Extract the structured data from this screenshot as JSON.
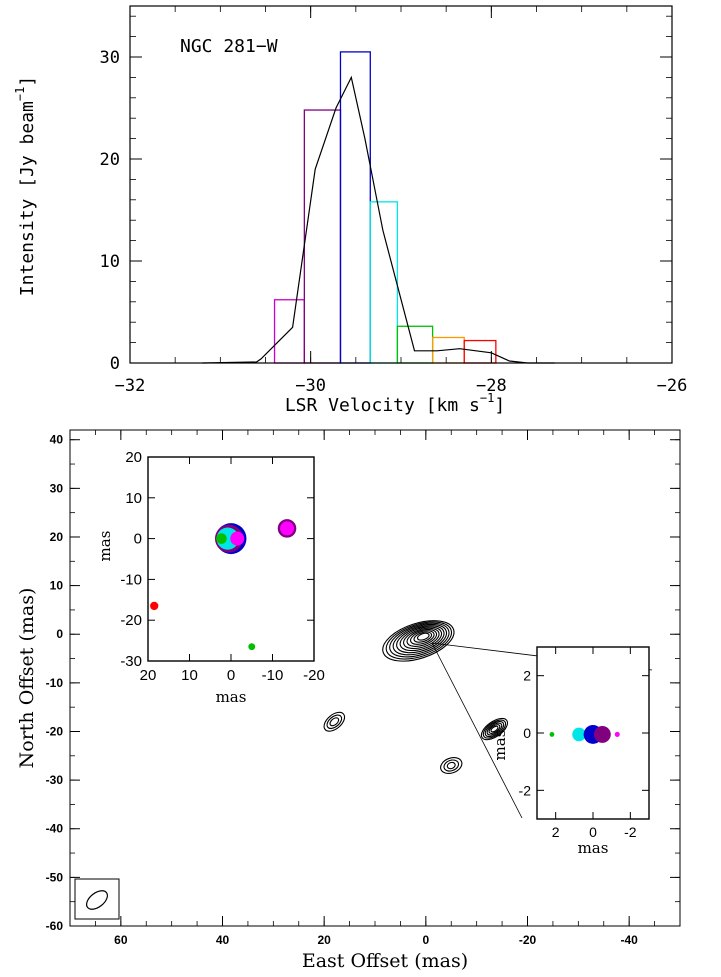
{
  "chart_data": [
    {
      "type": "bar",
      "subtype": "histogram-with-line",
      "annotation": "NGC 281−W",
      "xlabel": "LSR Velocity [km s⁻¹]",
      "xlabel_main": "LSR Velocity [km s",
      "xlabel_sup": "−1",
      "xlabel_close": "]",
      "ylabel": "Intensity [Jy beam⁻¹]",
      "ylabel_main": "Intensity [Jy beam",
      "ylabel_sup": "−1",
      "ylabel_close": "]",
      "xlim": [
        -32,
        -26
      ],
      "ylim": [
        0,
        35
      ],
      "xticks": [
        {
          "value": -32,
          "label": "−32"
        },
        {
          "value": -30,
          "label": "−30"
        },
        {
          "value": -28,
          "label": "−28"
        },
        {
          "value": -26,
          "label": "−26"
        }
      ],
      "yticks": [
        {
          "value": 0,
          "label": "0"
        },
        {
          "value": 10,
          "label": "10"
        },
        {
          "value": 20,
          "label": "20"
        },
        {
          "value": 30,
          "label": "30"
        }
      ],
      "bars": [
        {
          "x0": -30.4,
          "x1": -30.07,
          "value": 6.2,
          "color": "#cc00cc"
        },
        {
          "x0": -30.07,
          "x1": -29.67,
          "value": 24.8,
          "color": "#800080"
        },
        {
          "x0": -29.67,
          "x1": -29.34,
          "value": 30.5,
          "color": "#0000cc"
        },
        {
          "x0": -29.34,
          "x1": -29.04,
          "value": 15.8,
          "color": "#00e5e5"
        },
        {
          "x0": -29.04,
          "x1": -28.65,
          "value": 3.6,
          "color": "#00c000"
        },
        {
          "x0": -28.65,
          "x1": -28.3,
          "value": 2.5,
          "color": "#ff9900"
        },
        {
          "x0": -28.3,
          "x1": -27.95,
          "value": 2.2,
          "color": "#ff0000"
        }
      ],
      "spectrum": {
        "name": "spectrum",
        "x": [
          -31.2,
          -30.6,
          -30.55,
          -30.2,
          -29.95,
          -29.72,
          -29.55,
          -29.4,
          -29.2,
          -28.85,
          -28.6,
          -28.35,
          -28.0,
          -27.8,
          -27.6,
          -27.3
        ],
        "y": [
          0.0,
          0.1,
          0.4,
          3.5,
          19.0,
          25.0,
          28.0,
          22.0,
          13.0,
          1.2,
          1.2,
          1.4,
          1.0,
          0.2,
          0.0,
          0.0
        ]
      }
    },
    {
      "type": "contour",
      "xlabel": "East Offset (mas)",
      "ylabel": "North Offset (mas)",
      "xlim": [
        70,
        -50
      ],
      "ylim": [
        -60,
        42
      ],
      "xticks": [
        {
          "value": 60,
          "label": "60"
        },
        {
          "value": 40,
          "label": "40"
        },
        {
          "value": 20,
          "label": "20"
        },
        {
          "value": 0,
          "label": "0"
        },
        {
          "value": -20,
          "label": "-20"
        },
        {
          "value": -40,
          "label": "-40"
        }
      ],
      "yticks": [
        {
          "value": 40,
          "label": "40"
        },
        {
          "value": 30,
          "label": "30"
        },
        {
          "value": 20,
          "label": "20"
        },
        {
          "value": 10,
          "label": "10"
        },
        {
          "value": 0,
          "label": "0"
        },
        {
          "value": -10,
          "label": "-10"
        },
        {
          "value": -20,
          "label": "-20"
        },
        {
          "value": -30,
          "label": "-30"
        },
        {
          "value": -40,
          "label": "-40"
        },
        {
          "value": -50,
          "label": "-50"
        },
        {
          "value": -60,
          "label": "-60"
        }
      ],
      "components": [
        {
          "x": 0.5,
          "y": -0.5,
          "count": 11
        },
        {
          "x": -13.5,
          "y": -19.5,
          "count": 6
        },
        {
          "x": 18,
          "y": -18,
          "count": 3
        },
        {
          "x": -5,
          "y": -27,
          "count": 3
        }
      ],
      "beam": {
        "x": 64,
        "y": -54
      }
    },
    {
      "type": "scatter",
      "role": "inset-wide",
      "xlabel": "mas",
      "ylabel": "mas",
      "xlim": [
        20,
        -20
      ],
      "ylim": [
        -30,
        20
      ],
      "xticks": [
        {
          "value": 20,
          "label": "20"
        },
        {
          "value": 10,
          "label": "10"
        },
        {
          "value": 0,
          "label": "0"
        },
        {
          "value": -10,
          "label": "-10"
        },
        {
          "value": -20,
          "label": "-20"
        }
      ],
      "yticks": [
        {
          "value": 20,
          "label": "20"
        },
        {
          "value": 10,
          "label": "10"
        },
        {
          "value": 0,
          "label": "0"
        },
        {
          "value": -10,
          "label": "-10"
        },
        {
          "value": -20,
          "label": "-20"
        },
        {
          "value": -30,
          "label": "-30"
        }
      ],
      "points": [
        {
          "x": 0,
          "y": 0,
          "color": "#0000cc",
          "size": 30.5
        },
        {
          "x": 0.5,
          "y": 0,
          "color": "#800080",
          "size": 24.8
        },
        {
          "x": 0.8,
          "y": 0,
          "color": "#00e5e5",
          "size": 15.8
        },
        {
          "x": -1.5,
          "y": 0,
          "color": "#ff00ff",
          "size": 6.2
        },
        {
          "x": 2.3,
          "y": 0,
          "color": "#00c000",
          "size": 3.6
        },
        {
          "x": -13.5,
          "y": 2.5,
          "color": "#800080",
          "size": 11
        },
        {
          "x": -13.5,
          "y": 2.5,
          "color": "#ff00ff",
          "size": 6.2
        },
        {
          "x": 18.5,
          "y": -16.5,
          "color": "#ff0000",
          "size": 2.2
        },
        {
          "x": -5,
          "y": -26.5,
          "color": "#00c000",
          "size": 1.5
        }
      ]
    },
    {
      "type": "scatter",
      "role": "inset-zoom",
      "xlabel": "mas",
      "ylabel": "mas",
      "xlim": [
        3,
        -3
      ],
      "ylim": [
        -3,
        3
      ],
      "xticks": [
        {
          "value": 2,
          "label": "2"
        },
        {
          "value": 0,
          "label": "0"
        },
        {
          "value": -2,
          "label": "-2"
        }
      ],
      "yticks": [
        {
          "value": 2,
          "label": "2"
        },
        {
          "value": 0,
          "label": "0"
        },
        {
          "value": -2,
          "label": "-2"
        }
      ],
      "points": [
        {
          "x": 2.2,
          "y": -0.05,
          "color": "#00c000",
          "size": 1.5
        },
        {
          "x": 0.75,
          "y": -0.05,
          "color": "#00e5e5",
          "size": 15.8
        },
        {
          "x": 0.0,
          "y": -0.05,
          "color": "#0000cc",
          "size": 30.5
        },
        {
          "x": -0.5,
          "y": -0.05,
          "color": "#800080",
          "size": 24.8
        },
        {
          "x": -1.3,
          "y": -0.05,
          "color": "#ff00ff",
          "size": 2.2
        }
      ]
    }
  ]
}
